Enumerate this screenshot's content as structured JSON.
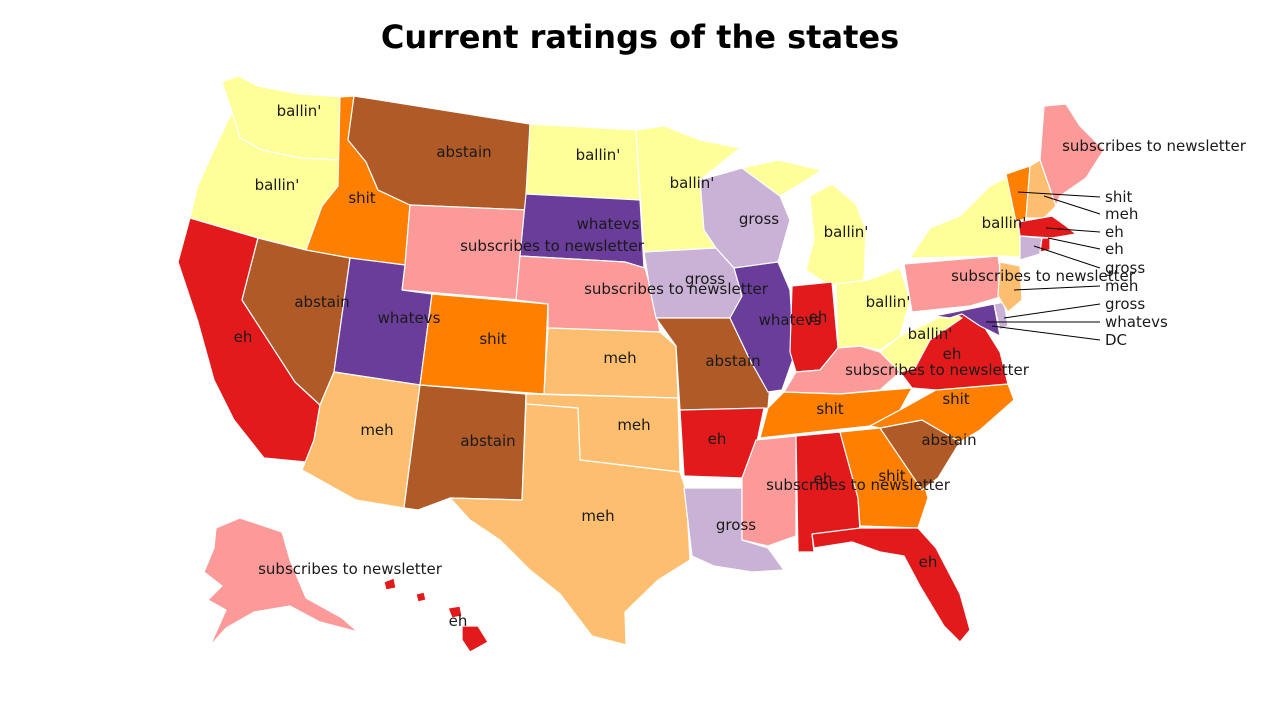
{
  "title": "Current ratings of the states",
  "colors": {
    "ballin": "#ffff99",
    "abstain": "#b05a28",
    "shit": "#ff7f00",
    "subscribes": "#fb9a99",
    "whatevs": "#6a3d9a",
    "gross": "#cab2d6",
    "eh": "#e31a1c",
    "meh": "#fdbf6f"
  },
  "states": [
    {
      "code": "WA",
      "rating": "ballin'"
    },
    {
      "code": "OR",
      "rating": "ballin'"
    },
    {
      "code": "CA",
      "rating": "eh"
    },
    {
      "code": "ID",
      "rating": "shit"
    },
    {
      "code": "NV",
      "rating": "abstain"
    },
    {
      "code": "MT",
      "rating": "abstain"
    },
    {
      "code": "WY",
      "rating": "subscribes to newsletter"
    },
    {
      "code": "UT",
      "rating": "whatevs"
    },
    {
      "code": "AZ",
      "rating": "meh"
    },
    {
      "code": "CO",
      "rating": "shit"
    },
    {
      "code": "NM",
      "rating": "abstain"
    },
    {
      "code": "ND",
      "rating": "ballin'"
    },
    {
      "code": "SD",
      "rating": "whatevs"
    },
    {
      "code": "NE",
      "rating": "subscribes to newsletter"
    },
    {
      "code": "KS",
      "rating": "meh"
    },
    {
      "code": "OK",
      "rating": "meh"
    },
    {
      "code": "TX",
      "rating": "meh"
    },
    {
      "code": "MN",
      "rating": "ballin'"
    },
    {
      "code": "IA",
      "rating": "gross"
    },
    {
      "code": "MO",
      "rating": "abstain"
    },
    {
      "code": "AR",
      "rating": "eh"
    },
    {
      "code": "LA",
      "rating": "gross"
    },
    {
      "code": "WI",
      "rating": "gross"
    },
    {
      "code": "IL",
      "rating": "whatevs"
    },
    {
      "code": "MI",
      "rating": "ballin'"
    },
    {
      "code": "IN",
      "rating": "eh"
    },
    {
      "code": "OH",
      "rating": "ballin'"
    },
    {
      "code": "KY",
      "rating": "subscribes to newsletter"
    },
    {
      "code": "TN",
      "rating": "shit"
    },
    {
      "code": "MS",
      "rating": "subscribes to newsletter"
    },
    {
      "code": "AL",
      "rating": "eh"
    },
    {
      "code": "GA",
      "rating": "shit"
    },
    {
      "code": "FL",
      "rating": "eh"
    },
    {
      "code": "SC",
      "rating": "abstain"
    },
    {
      "code": "NC",
      "rating": "shit"
    },
    {
      "code": "VA",
      "rating": "eh"
    },
    {
      "code": "WV",
      "rating": "ballin'"
    },
    {
      "code": "MD",
      "rating": "whatevs"
    },
    {
      "code": "DE",
      "rating": "gross"
    },
    {
      "code": "NJ",
      "rating": "meh"
    },
    {
      "code": "PA",
      "rating": "subscribes to newsletter"
    },
    {
      "code": "NY",
      "rating": "ballin'"
    },
    {
      "code": "VT",
      "rating": "shit"
    },
    {
      "code": "NH",
      "rating": "meh"
    },
    {
      "code": "ME",
      "rating": "subscribes to newsletter"
    },
    {
      "code": "MA",
      "rating": "eh"
    },
    {
      "code": "RI",
      "rating": "eh"
    },
    {
      "code": "CT",
      "rating": "gross"
    },
    {
      "code": "DC",
      "rating": "DC"
    },
    {
      "code": "AK",
      "rating": "subscribes to newsletter"
    },
    {
      "code": "HI",
      "rating": "eh"
    }
  ],
  "callouts": [
    "shit",
    "meh",
    "eh",
    "eh",
    "gross",
    "meh",
    "gross",
    "whatevs",
    "DC"
  ]
}
